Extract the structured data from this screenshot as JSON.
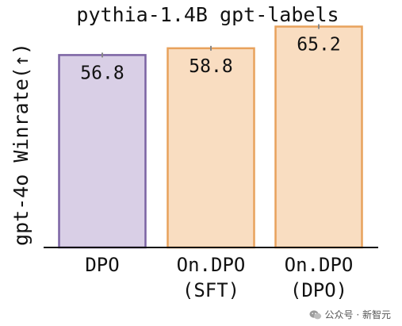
{
  "chart_data": {
    "type": "bar",
    "title": "pythia-1.4B gpt-labels",
    "ylabel": "gpt-4o Winrate(↑)",
    "xlabel": "",
    "ylim": [
      0,
      70
    ],
    "grid": false,
    "categories": [
      "DPO",
      "On.DPO\n(SFT)",
      "On.DPO\n(DPO)"
    ],
    "values": [
      56.8,
      58.8,
      65.2
    ],
    "data_labels": [
      "56.8",
      "58.8",
      "65.2"
    ],
    "colors": {
      "fill": [
        "#d9cfe6",
        "#f9ddc1",
        "#f9ddc1"
      ],
      "stroke": [
        "#7b63a3",
        "#e8a25c",
        "#e8a25c"
      ],
      "errorbar": "#888888",
      "axis": "#111111"
    }
  },
  "watermark": {
    "text": "公众号 · 新智元",
    "icon": "wechat-icon"
  }
}
